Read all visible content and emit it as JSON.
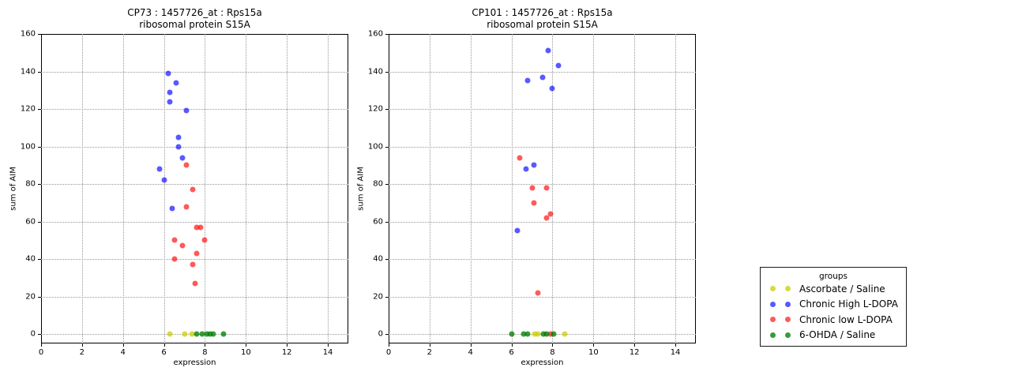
{
  "legend": {
    "title": "groups",
    "entries": [
      {
        "label": "Ascorbate / Saline",
        "color": "rgba(204,204,0,0.75)"
      },
      {
        "label": "Chronic High L-DOPA",
        "color": "rgba(0,0,255,0.65)"
      },
      {
        "label": "Chronic low L-DOPA",
        "color": "rgba(255,0,0,0.65)"
      },
      {
        "label": "6-OHDA / Saline",
        "color": "rgba(0,128,0,0.78)"
      }
    ]
  },
  "chart_data": [
    {
      "type": "scatter",
      "title": "CP73 : 1457726_at : Rps15a",
      "subtitle": "ribosomal protein S15A",
      "xlabel": "expression",
      "ylabel": "sum of AIM",
      "xlim": [
        0,
        15
      ],
      "ylim": [
        -5,
        160
      ],
      "xticks": [
        0,
        2,
        4,
        6,
        8,
        10,
        12,
        14
      ],
      "yticks": [
        0,
        20,
        40,
        60,
        80,
        100,
        120,
        140,
        160
      ],
      "grid": true,
      "legend_position": "outside-right",
      "series": [
        {
          "name": "Ascorbate / Saline",
          "points": [
            [
              6.3,
              0
            ],
            [
              7.0,
              0
            ],
            [
              7.35,
              0
            ]
          ]
        },
        {
          "name": "Chronic High L-DOPA",
          "points": [
            [
              5.8,
              88
            ],
            [
              6.0,
              82
            ],
            [
              6.2,
              139
            ],
            [
              6.3,
              129
            ],
            [
              6.3,
              124
            ],
            [
              6.4,
              67
            ],
            [
              6.6,
              134
            ],
            [
              6.7,
              105
            ],
            [
              6.7,
              100
            ],
            [
              6.9,
              94
            ],
            [
              7.1,
              119
            ]
          ]
        },
        {
          "name": "Chronic low L-DOPA",
          "points": [
            [
              6.5,
              50
            ],
            [
              6.5,
              40
            ],
            [
              6.9,
              47
            ],
            [
              7.1,
              90
            ],
            [
              7.1,
              68
            ],
            [
              7.4,
              77
            ],
            [
              7.4,
              37
            ],
            [
              7.5,
              27
            ],
            [
              7.6,
              57
            ],
            [
              7.6,
              43
            ],
            [
              7.8,
              57
            ],
            [
              8.0,
              50
            ]
          ]
        },
        {
          "name": "6-OHDA / Saline",
          "points": [
            [
              7.6,
              0
            ],
            [
              7.85,
              0
            ],
            [
              8.1,
              0
            ],
            [
              8.25,
              0
            ],
            [
              8.4,
              0
            ],
            [
              8.9,
              0
            ]
          ]
        }
      ]
    },
    {
      "type": "scatter",
      "title": "CP101 : 1457726_at : Rps15a",
      "subtitle": "ribosomal protein S15A",
      "xlabel": "expression",
      "ylabel": "sum of AIM",
      "xlim": [
        0,
        15
      ],
      "ylim": [
        -5,
        160
      ],
      "xticks": [
        0,
        2,
        4,
        6,
        8,
        10,
        12,
        14
      ],
      "yticks": [
        0,
        20,
        40,
        60,
        80,
        100,
        120,
        140,
        160
      ],
      "grid": true,
      "legend_position": "outside-right",
      "series": [
        {
          "name": "Ascorbate / Saline",
          "points": [
            [
              7.15,
              0
            ],
            [
              7.3,
              0
            ],
            [
              8.6,
              0
            ]
          ]
        },
        {
          "name": "Chronic High L-DOPA",
          "points": [
            [
              6.3,
              55
            ],
            [
              6.7,
              88
            ],
            [
              6.8,
              135
            ],
            [
              7.1,
              90
            ],
            [
              7.5,
              137
            ],
            [
              7.8,
              151
            ],
            [
              8.0,
              131
            ],
            [
              8.3,
              143
            ]
          ]
        },
        {
          "name": "Chronic low L-DOPA",
          "points": [
            [
              6.4,
              94
            ],
            [
              7.0,
              78
            ],
            [
              7.1,
              70
            ],
            [
              7.3,
              22
            ],
            [
              7.7,
              78
            ],
            [
              7.7,
              62
            ],
            [
              7.9,
              64
            ],
            [
              7.9,
              0
            ]
          ]
        },
        {
          "name": "6-OHDA / Saline",
          "points": [
            [
              6.0,
              0
            ],
            [
              6.6,
              0
            ],
            [
              6.8,
              0
            ],
            [
              7.55,
              0
            ],
            [
              7.7,
              0
            ],
            [
              8.05,
              0
            ]
          ]
        }
      ]
    }
  ]
}
